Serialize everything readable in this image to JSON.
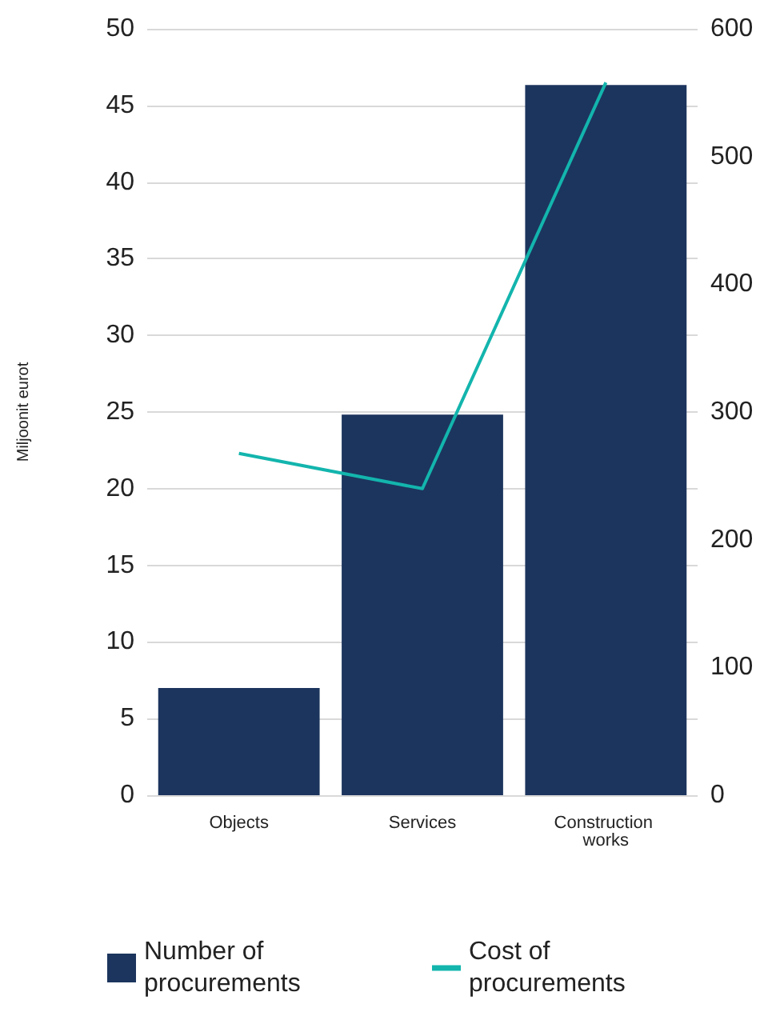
{
  "chart_data": {
    "type": "bar",
    "ylabel": "Miljoonit eurot",
    "categories": [
      "Objects",
      "Services",
      "Construction works"
    ],
    "series": [
      {
        "name": "Number of procurements",
        "axis": "y2",
        "color": "#1c355e",
        "values": [
          84,
          298,
          556
        ]
      },
      {
        "name": "Cost of procurements",
        "type": "line",
        "color": "#13b5ad",
        "values": [
          22.3,
          20.0,
          46.5
        ]
      }
    ],
    "ylim": [
      0,
      50
    ],
    "yticks": [
      0,
      5,
      10,
      15,
      20,
      25,
      30,
      35,
      40,
      45,
      50
    ],
    "y2lim": [
      0,
      600
    ],
    "y2ticks": [
      0,
      100,
      200,
      300,
      400,
      500,
      600
    ],
    "grid": "y",
    "legend": "bottom",
    "marker": "none",
    "line_style": "solid"
  }
}
